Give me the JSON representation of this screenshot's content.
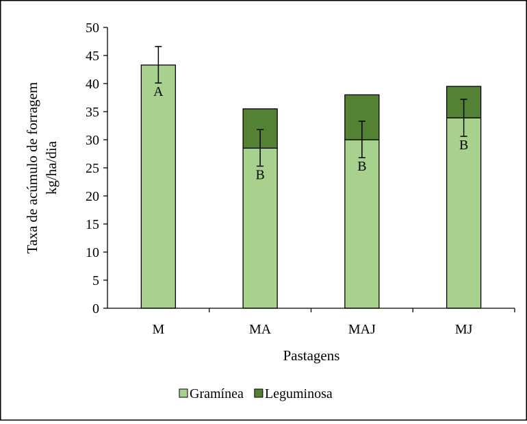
{
  "chart_data": {
    "type": "bar",
    "stacked": true,
    "categories": [
      "M",
      "MA",
      "MAJ",
      "MJ"
    ],
    "series": [
      {
        "name": "Gramínea",
        "color": "#a9d18e",
        "values": [
          43.3,
          28.5,
          30.0,
          33.9
        ]
      },
      {
        "name": "Leguminosa",
        "color": "#548235",
        "values": [
          0,
          7.0,
          8.0,
          5.6
        ]
      }
    ],
    "error_bars": {
      "low": [
        40.1,
        25.3,
        26.8,
        30.6
      ],
      "high": [
        46.6,
        31.8,
        33.3,
        37.2
      ]
    },
    "significance_letters": [
      "A",
      "B",
      "B",
      "B"
    ],
    "xlabel": "Pastagens",
    "ylabel_lines": [
      "Taxa de acúmulo de forragem",
      "kg/ha/dia"
    ],
    "ylim": [
      0,
      50
    ],
    "yticks": [
      0,
      5,
      10,
      15,
      20,
      25,
      30,
      35,
      40,
      45,
      50
    ],
    "grid": false,
    "legend_position": "bottom"
  }
}
